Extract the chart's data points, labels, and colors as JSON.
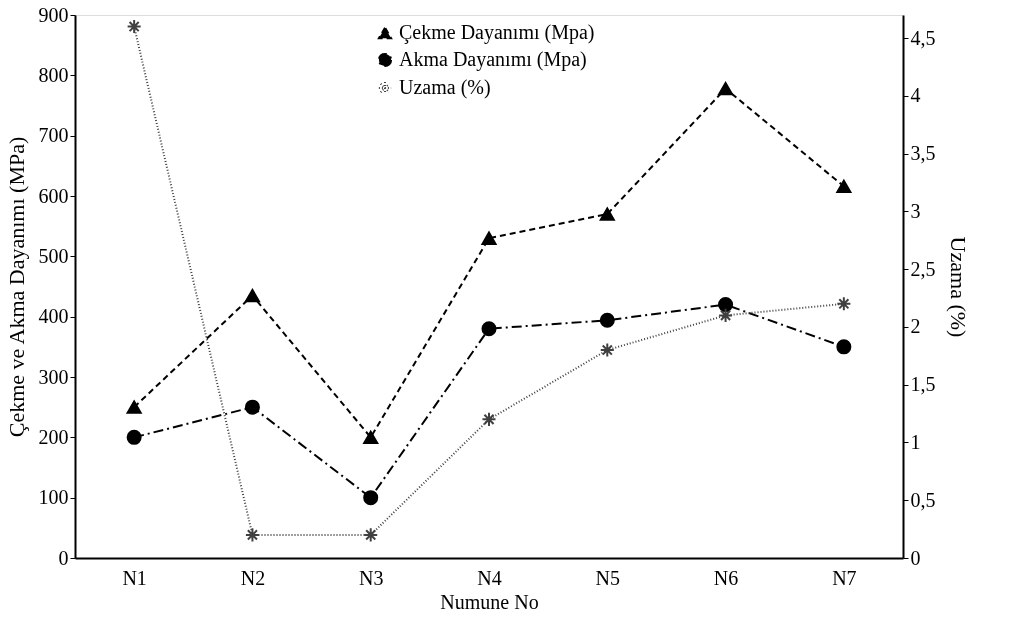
{
  "chart_data": {
    "type": "line",
    "xlabel": "Numune No",
    "ylabel": "Çekme ve Akma Dayanımı (MPa)",
    "y2label": "Uzama (%)",
    "categories": [
      "N1",
      "N2",
      "N3",
      "N4",
      "N5",
      "N6",
      "N7"
    ],
    "ylim": [
      0,
      900
    ],
    "yticks": [
      0,
      100,
      200,
      300,
      400,
      500,
      600,
      700,
      800,
      900
    ],
    "y2lim": [
      0,
      4.7
    ],
    "y2ticks": [
      0,
      {
        "value": 0.5,
        "label": "0,5"
      },
      1,
      {
        "value": 1.5,
        "label": "1,5"
      },
      2,
      {
        "value": 2.5,
        "label": "2,5"
      },
      3,
      {
        "value": 3.5,
        "label": "3,5"
      },
      4,
      {
        "value": 4.5,
        "label": "4,5"
      }
    ],
    "grid": false,
    "legend": "top",
    "series": [
      {
        "name": "Çekme Dayanımı (Mpa)",
        "color": "#000000",
        "marker": "triangle",
        "line_style": "dashed",
        "values": [
          250,
          435,
          200,
          530,
          570,
          778,
          616
        ]
      },
      {
        "name": "Akma Dayanımı (Mpa)",
        "color": "#000000",
        "marker": "circle",
        "line_style": "dashdot",
        "values": [
          200,
          250,
          100,
          380,
          394,
          420,
          350
        ]
      },
      {
        "name": "Uzama (%)",
        "color": "#404040",
        "marker": "cross",
        "line_style": "dotted",
        "axis": "y2",
        "values": [
          4.6,
          0.2,
          0.2,
          1.2,
          1.8,
          2.1,
          2.2
        ]
      }
    ]
  }
}
